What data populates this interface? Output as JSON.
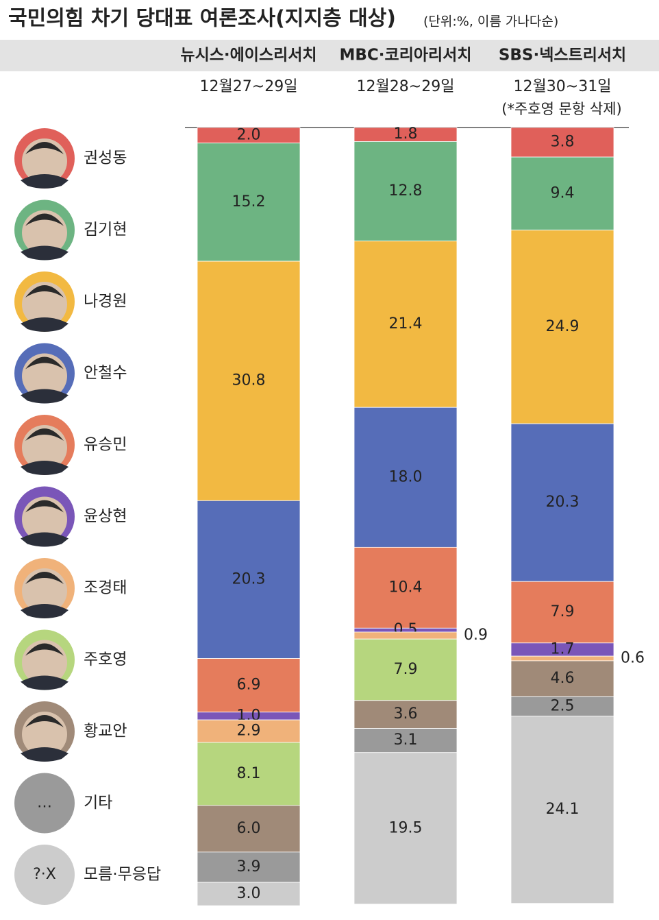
{
  "chart_data": {
    "type": "stacked-bar",
    "title": "국민의힘 차기 당대표 여론조사(지지층 대상)",
    "subtitle": "(단위:%, 이름 가나다순)",
    "categories": [
      "뉴시스·에이스리서치",
      "MBC·코리아리서치",
      "SBS·넥스트리서치"
    ],
    "dates": [
      "12월27~29일",
      "12월28~29일",
      "12월30~31일"
    ],
    "note": "(*주호영 문항 삭제)",
    "ylim": [
      0,
      100
    ],
    "series": [
      {
        "name": "권성동",
        "color": "#e0605a",
        "values": [
          2.0,
          1.8,
          3.8
        ],
        "value_labels": [
          "2.0",
          "1.8",
          "3.8"
        ]
      },
      {
        "name": "김기현",
        "color": "#6db482",
        "values": [
          15.2,
          12.8,
          9.4
        ],
        "value_labels": [
          "15.2",
          "12.8",
          "9.4"
        ]
      },
      {
        "name": "나경원",
        "color": "#f2b942",
        "values": [
          30.8,
          21.4,
          24.9
        ],
        "value_labels": [
          "30.8",
          "21.4",
          "24.9"
        ]
      },
      {
        "name": "안철수",
        "color": "#566db8",
        "values": [
          20.3,
          18.0,
          20.3
        ],
        "value_labels": [
          "20.3",
          "18.0",
          "20.3"
        ]
      },
      {
        "name": "유승민",
        "color": "#e57c5c",
        "values": [
          6.9,
          10.4,
          7.9
        ],
        "value_labels": [
          "6.9",
          "10.4",
          "7.9"
        ]
      },
      {
        "name": "윤상현",
        "color": "#7a56b8",
        "values": [
          1.0,
          0.5,
          1.7
        ],
        "value_labels": [
          "1.0",
          "0.5",
          "1.7"
        ]
      },
      {
        "name": "조경태",
        "color": "#f0b27a",
        "values": [
          2.9,
          0.9,
          0.6
        ],
        "value_labels": [
          "2.9",
          "0.9",
          "0.6"
        ]
      },
      {
        "name": "주호영",
        "color": "#b6d67e",
        "values": [
          8.1,
          7.9,
          null
        ],
        "value_labels": [
          "8.1",
          "7.9",
          null
        ]
      },
      {
        "name": "황교안",
        "color": "#a08a78",
        "values": [
          6.0,
          3.6,
          4.6
        ],
        "value_labels": [
          "6.0",
          "3.6",
          "4.6"
        ]
      },
      {
        "name": "기타",
        "icon": "…",
        "color": "#9a9a9a",
        "values": [
          3.9,
          3.1,
          2.5
        ],
        "value_labels": [
          "3.9",
          "3.1",
          "2.5"
        ]
      },
      {
        "name": "모름·무응답",
        "icon": "?·X",
        "color": "#cccccc",
        "values": [
          3.0,
          19.5,
          24.1
        ],
        "value_labels": [
          "3.0",
          "19.5",
          "24.1"
        ]
      }
    ]
  }
}
